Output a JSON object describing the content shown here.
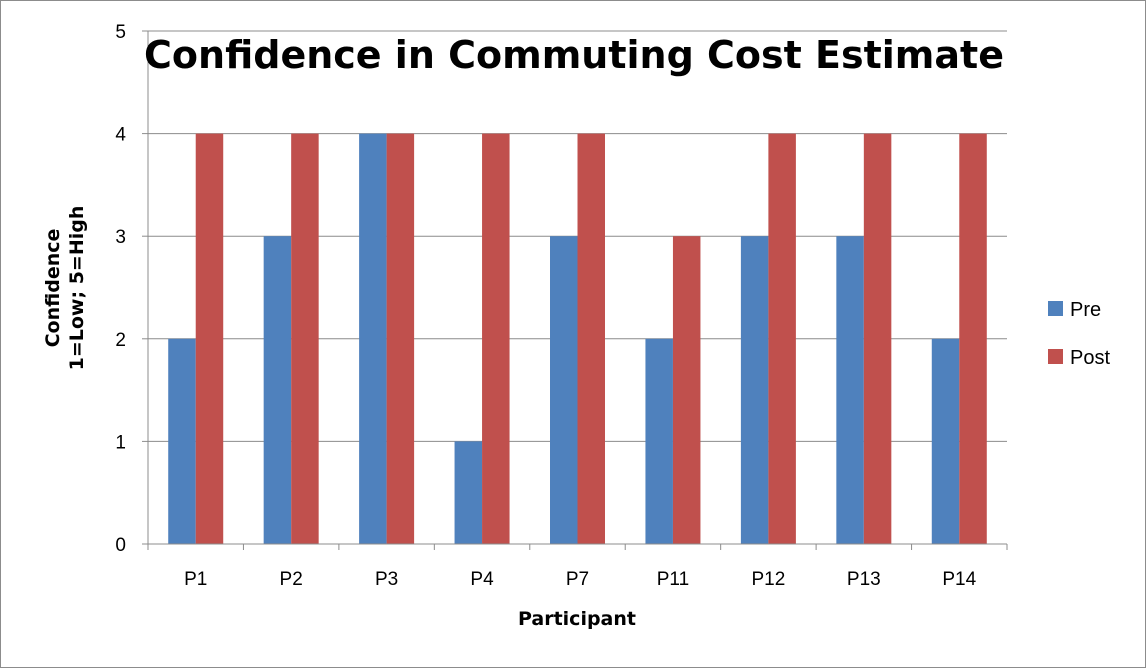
{
  "chart_data": {
    "type": "bar",
    "title": "Confidence in Commuting Cost Estimate",
    "xlabel": "Participant",
    "ylabel_line1": "Confidence",
    "ylabel_line2": "1=Low; 5=High",
    "ylim": [
      0,
      5
    ],
    "yticks": [
      0,
      1,
      2,
      3,
      4,
      5
    ],
    "grid": true,
    "legend_position": "right",
    "categories": [
      "P1",
      "P2",
      "P3",
      "P4",
      "P7",
      "P11",
      "P12",
      "P13",
      "P14"
    ],
    "series": [
      {
        "name": "Pre",
        "color": "#4F81BD",
        "values": [
          2,
          3,
          4,
          1,
          3,
          2,
          3,
          3,
          2
        ]
      },
      {
        "name": "Post",
        "color": "#C0504D",
        "values": [
          4,
          4,
          4,
          4,
          4,
          3,
          4,
          4,
          4
        ]
      }
    ]
  }
}
